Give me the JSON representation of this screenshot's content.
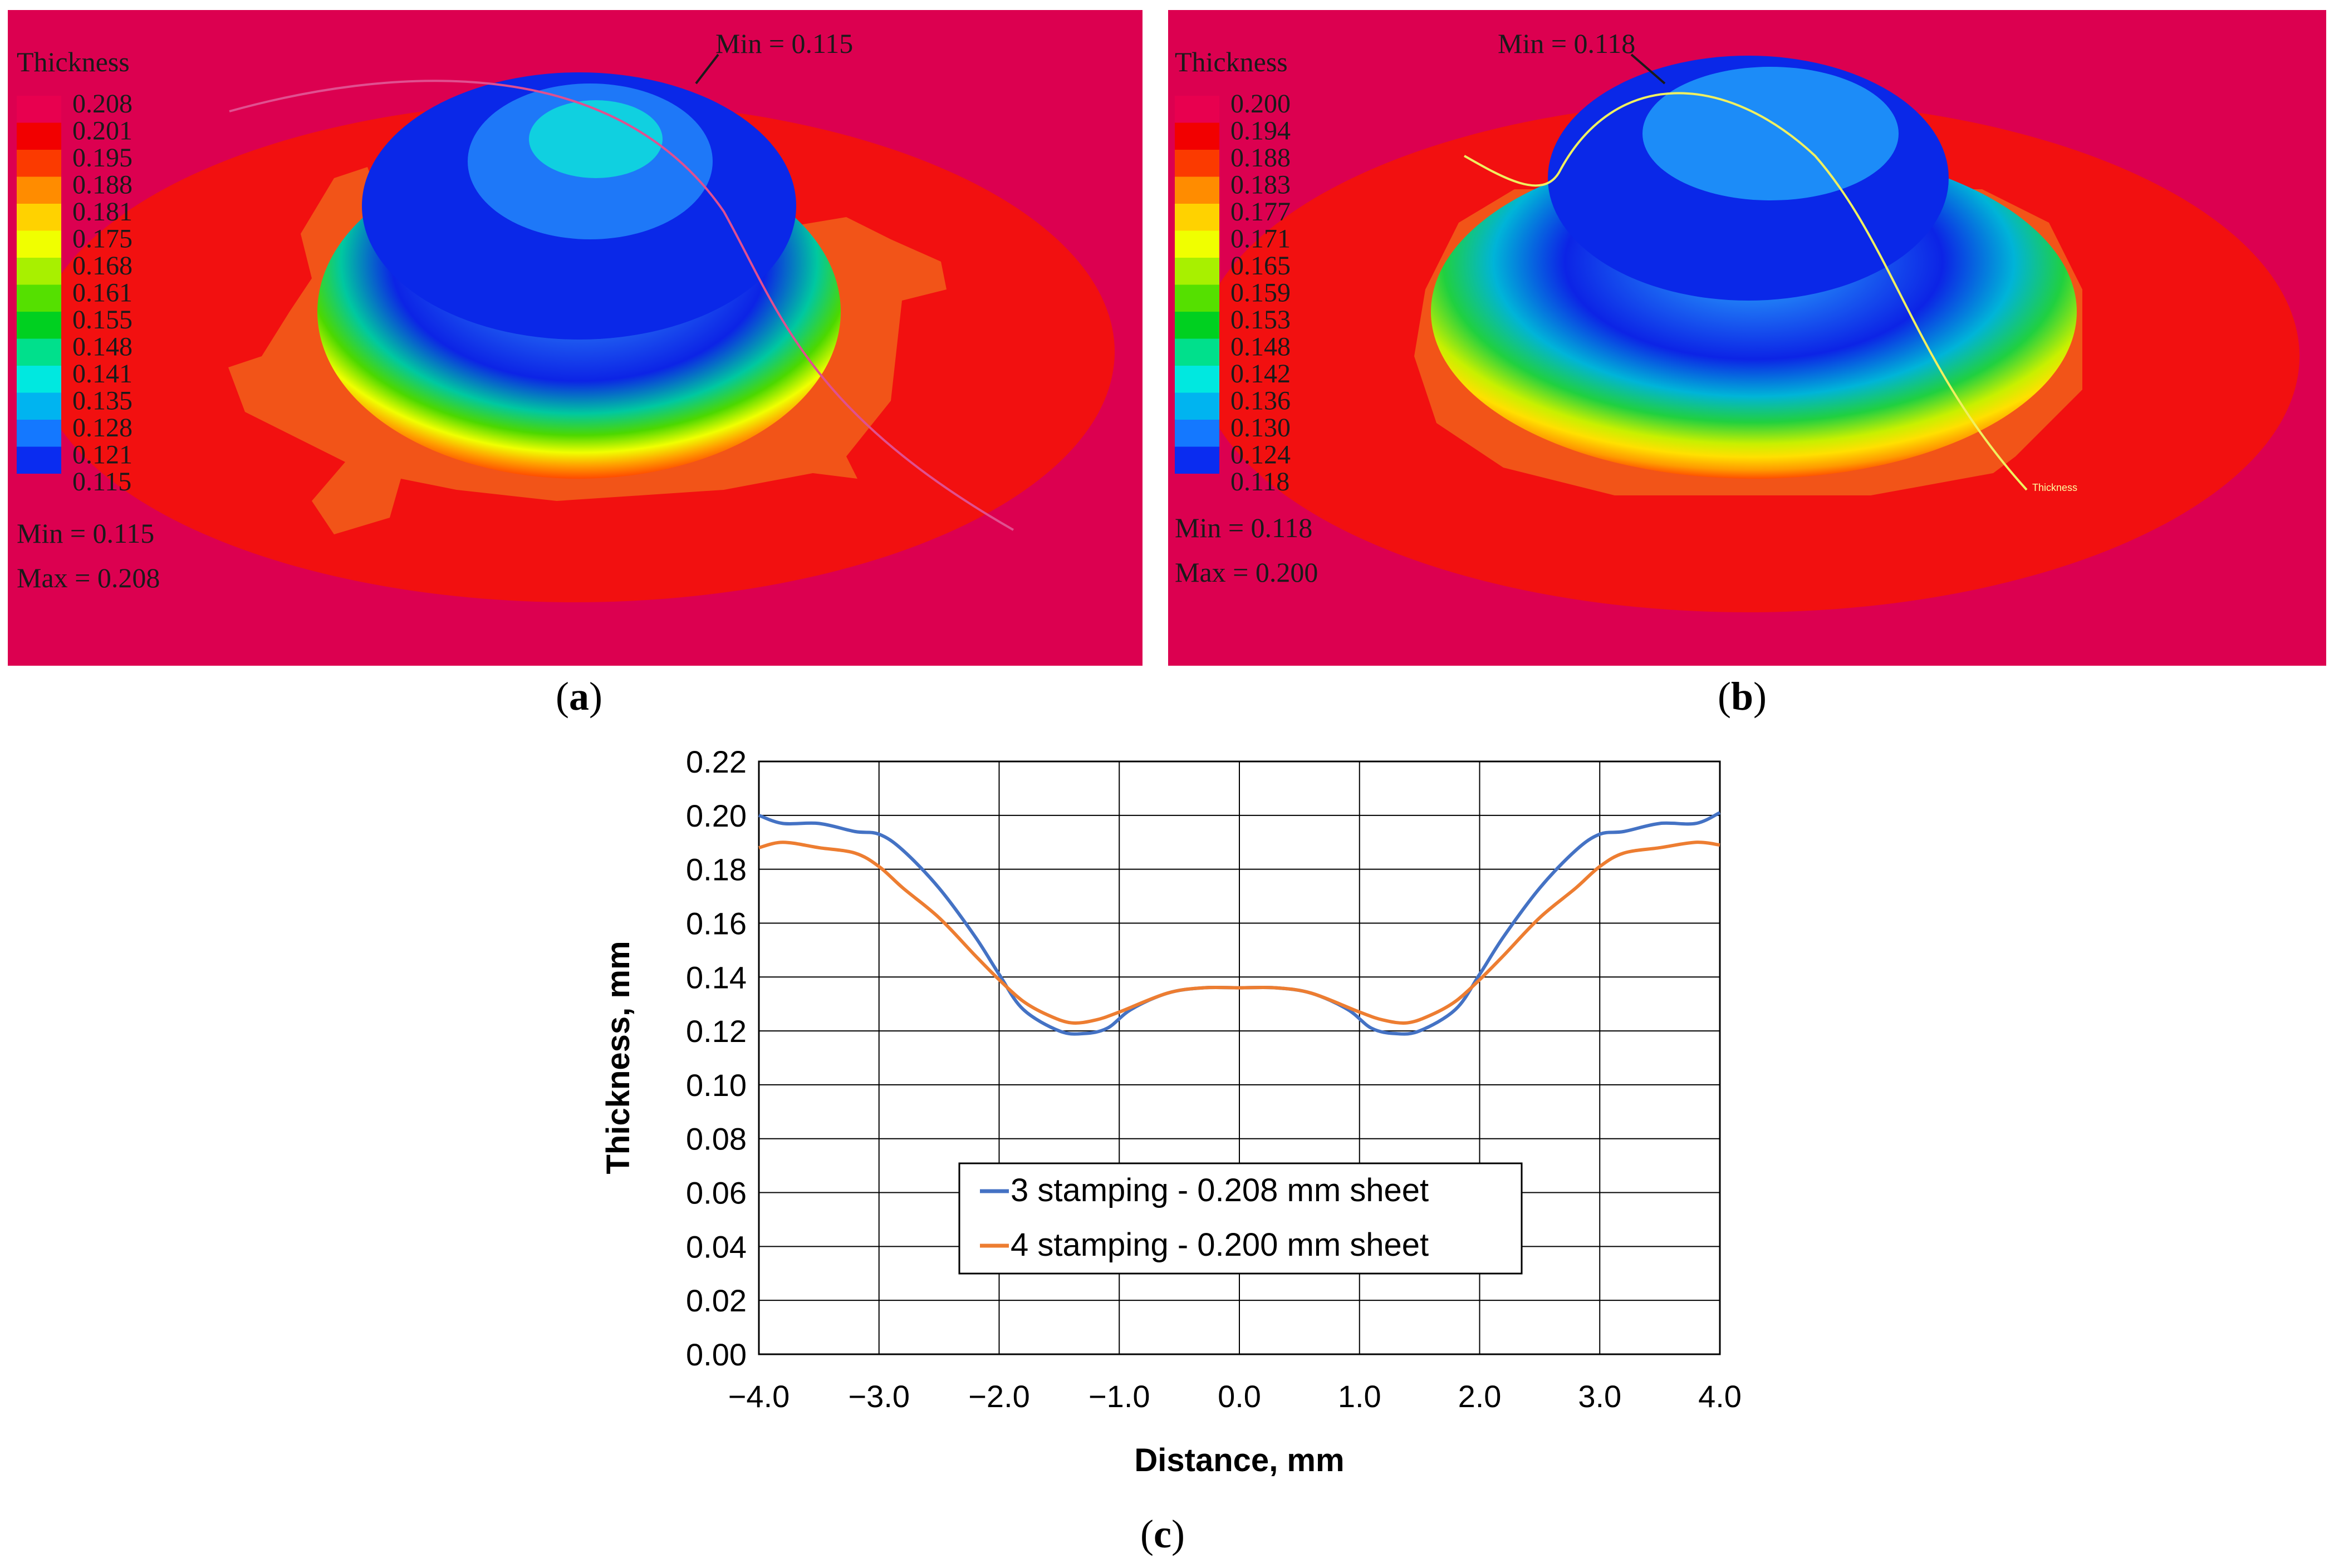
{
  "panel_a": {
    "legend_title": "Thickness",
    "legend_values": [
      "0.208",
      "0.201",
      "0.195",
      "0.188",
      "0.181",
      "0.175",
      "0.168",
      "0.161",
      "0.155",
      "0.148",
      "0.141",
      "0.135",
      "0.128",
      "0.121",
      "0.115"
    ],
    "min_label": "Min =  0.115",
    "max_label": "Max =  0.208",
    "callout": "Min = 0.115"
  },
  "panel_b": {
    "legend_title": "Thickness",
    "legend_values": [
      "0.200",
      "0.194",
      "0.188",
      "0.183",
      "0.177",
      "0.171",
      "0.165",
      "0.159",
      "0.153",
      "0.148",
      "0.142",
      "0.136",
      "0.130",
      "0.124",
      "0.118"
    ],
    "min_label": "Min =  0.118",
    "max_label": "Max =  0.200",
    "callout": "Min = 0.118",
    "path_label": "Thickness"
  },
  "legend_colors": [
    "#e8004f",
    "#f20000",
    "#fb3a00",
    "#ff8c00",
    "#ffd200",
    "#f0ff00",
    "#a8f000",
    "#55e000",
    "#00d020",
    "#00e08c",
    "#00e8e0",
    "#00b4f0",
    "#1478ff",
    "#0a2cf0",
    "#0000d2"
  ],
  "captions": {
    "a": "a",
    "b": "b",
    "c": "c"
  },
  "chart_data": {
    "type": "line",
    "xlabel": "Distance, mm",
    "ylabel": "Thickness, mm",
    "xlim": [
      -4.0,
      4.0
    ],
    "ylim": [
      0.0,
      0.22
    ],
    "xticks": [
      -4.0,
      -3.0,
      -2.0,
      -1.0,
      0.0,
      1.0,
      2.0,
      3.0,
      4.0
    ],
    "xtick_labels": [
      "−4.0",
      "−3.0",
      "−2.0",
      "−1.0",
      "0.0",
      "1.0",
      "2.0",
      "3.0",
      "4.0"
    ],
    "yticks": [
      0.0,
      0.02,
      0.04,
      0.06,
      0.08,
      0.1,
      0.12,
      0.14,
      0.16,
      0.18,
      0.2,
      0.22
    ],
    "ytick_labels": [
      "0.00",
      "0.02",
      "0.04",
      "0.06",
      "0.08",
      "0.10",
      "0.12",
      "0.14",
      "0.16",
      "0.18",
      "0.20",
      "0.22"
    ],
    "grid": true,
    "legend_position": "bottom-center",
    "series": [
      {
        "name": "3 stamping - 0.208 mm sheet",
        "color": "#4472c4",
        "x": [
          -4.0,
          -3.8,
          -3.5,
          -3.2,
          -3.0,
          -2.8,
          -2.5,
          -2.2,
          -2.0,
          -1.8,
          -1.5,
          -1.3,
          -1.1,
          -0.9,
          -0.6,
          -0.3,
          0.0,
          0.3,
          0.6,
          0.9,
          1.1,
          1.3,
          1.5,
          1.8,
          2.0,
          2.2,
          2.5,
          2.8,
          3.0,
          3.2,
          3.5,
          3.8,
          4.0
        ],
        "y": [
          0.2,
          0.197,
          0.197,
          0.194,
          0.193,
          0.187,
          0.173,
          0.155,
          0.141,
          0.128,
          0.12,
          0.119,
          0.121,
          0.128,
          0.134,
          0.136,
          0.136,
          0.136,
          0.134,
          0.128,
          0.121,
          0.119,
          0.12,
          0.128,
          0.141,
          0.155,
          0.173,
          0.187,
          0.193,
          0.194,
          0.197,
          0.197,
          0.201
        ]
      },
      {
        "name": "4 stamping - 0.200 mm sheet",
        "color": "#ed7d31",
        "x": [
          -4.0,
          -3.8,
          -3.5,
          -3.2,
          -3.0,
          -2.8,
          -2.5,
          -2.2,
          -2.0,
          -1.8,
          -1.6,
          -1.4,
          -1.2,
          -1.0,
          -0.6,
          -0.3,
          0.0,
          0.3,
          0.6,
          1.0,
          1.2,
          1.4,
          1.6,
          1.8,
          2.0,
          2.2,
          2.5,
          2.8,
          3.0,
          3.2,
          3.5,
          3.8,
          4.0
        ],
        "y": [
          0.188,
          0.19,
          0.188,
          0.186,
          0.181,
          0.173,
          0.162,
          0.148,
          0.139,
          0.131,
          0.126,
          0.123,
          0.124,
          0.127,
          0.134,
          0.136,
          0.136,
          0.136,
          0.134,
          0.127,
          0.124,
          0.123,
          0.126,
          0.131,
          0.139,
          0.148,
          0.162,
          0.173,
          0.181,
          0.186,
          0.188,
          0.19,
          0.189
        ]
      }
    ]
  }
}
